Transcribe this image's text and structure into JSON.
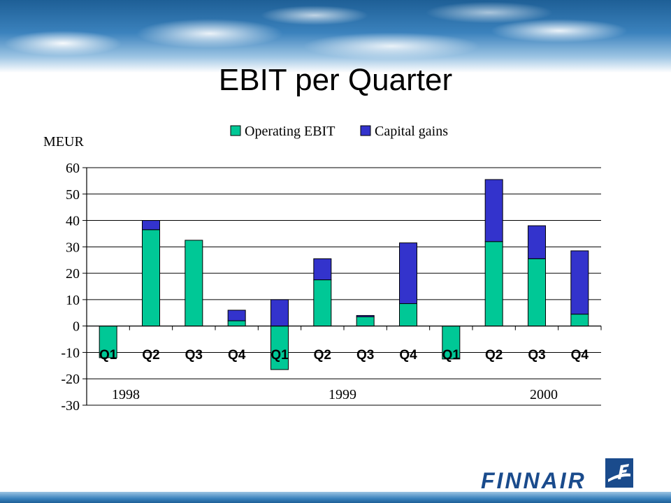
{
  "colors": {
    "operating": "#00c896",
    "capital": "#3333cc",
    "brand": "#1a4b8c"
  },
  "header": {
    "title": "EBIT per Quarter"
  },
  "logo": {
    "text": "FINNAIR",
    "mark": "finnair-f-icon"
  },
  "chart_data": {
    "type": "bar",
    "stacked": true,
    "unit_label": "MEUR",
    "categories": [
      "Q1",
      "Q2",
      "Q3",
      "Q4",
      "Q1",
      "Q2",
      "Q3",
      "Q4",
      "Q1",
      "Q2",
      "Q3",
      "Q4"
    ],
    "groups": [
      {
        "label": "1998",
        "first": 0,
        "last": 3
      },
      {
        "label": "1999",
        "first": 4,
        "last": 7
      },
      {
        "label": "2000",
        "first": 8,
        "last": 11
      }
    ],
    "series": [
      {
        "name": "Operating EBIT",
        "values": [
          -12,
          36.5,
          32.5,
          2,
          -16.5,
          17.5,
          3.5,
          8.5,
          -12.5,
          32,
          25.5,
          4.5
        ]
      },
      {
        "name": "Capital gains",
        "values": [
          0,
          3.5,
          0,
          4,
          10,
          8,
          0.5,
          23,
          0,
          23.5,
          12.5,
          24
        ]
      }
    ],
    "ylim": [
      -30,
      60
    ],
    "yticks": [
      "-30",
      "-20",
      "-10",
      "0",
      "10",
      "20",
      "30",
      "40",
      "50",
      "60"
    ],
    "legend": "top-center",
    "grid": true
  }
}
